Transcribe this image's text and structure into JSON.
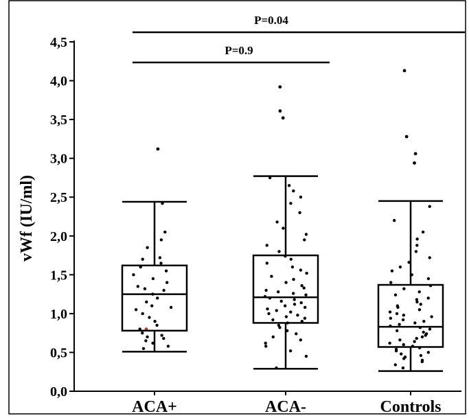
{
  "chart_data": {
    "type": "box",
    "title": "",
    "xlabel": "",
    "ylabel": "vWf (IU/ml)",
    "ylim": [
      0,
      4.5
    ],
    "y_ticks": [
      "0,0",
      "0,5",
      "1,0",
      "1,5",
      "2,0",
      "2,5",
      "3,0",
      "3,5",
      "4,0",
      "4,5"
    ],
    "y_tick_values": [
      0,
      0.5,
      1.0,
      1.5,
      2.0,
      2.5,
      3.0,
      3.5,
      4.0,
      4.5
    ],
    "categories": [
      "ACA+",
      "ACA-",
      "Controls"
    ],
    "grid": false,
    "legend": "none",
    "boxes": [
      {
        "category": "ACA+",
        "whisker_low": 0.51,
        "q1": 0.78,
        "median": 1.25,
        "q3": 1.62,
        "whisker_high": 2.44,
        "outliers": [
          3.12
        ],
        "points": [
          0.55,
          0.58,
          0.62,
          0.65,
          0.68,
          0.7,
          0.72,
          0.75,
          0.8,
          0.85,
          0.9,
          0.95,
          1.0,
          1.05,
          1.08,
          1.1,
          1.15,
          1.2,
          1.25,
          1.3,
          1.32,
          1.35,
          1.4,
          1.45,
          1.5,
          1.55,
          1.6,
          1.65,
          1.7,
          1.72,
          1.85,
          1.95,
          2.05,
          2.42
        ]
      },
      {
        "category": "ACA-",
        "whisker_low": 0.29,
        "q1": 0.88,
        "median": 1.21,
        "q3": 1.75,
        "whisker_high": 2.77,
        "outliers": [
          3.52,
          3.61,
          3.92
        ],
        "points": [
          0.3,
          0.45,
          0.52,
          0.58,
          0.62,
          0.66,
          0.7,
          0.74,
          0.78,
          0.82,
          0.85,
          0.88,
          0.9,
          0.92,
          0.94,
          0.96,
          0.98,
          1.0,
          1.02,
          1.04,
          1.06,
          1.08,
          1.1,
          1.12,
          1.14,
          1.16,
          1.18,
          1.2,
          1.22,
          1.24,
          1.26,
          1.28,
          1.3,
          1.33,
          1.36,
          1.4,
          1.44,
          1.48,
          1.52,
          1.56,
          1.6,
          1.65,
          1.7,
          1.74,
          1.8,
          1.88,
          1.95,
          2.02,
          2.1,
          2.18,
          2.3,
          2.42,
          2.5,
          2.58,
          2.65,
          2.75
        ]
      },
      {
        "category": "Controls",
        "whisker_low": 0.26,
        "q1": 0.57,
        "median": 0.83,
        "q3": 1.37,
        "whisker_high": 2.45,
        "outliers": [
          2.94,
          3.06,
          3.28,
          4.13
        ],
        "points": [
          0.3,
          0.34,
          0.38,
          0.4,
          0.42,
          0.44,
          0.46,
          0.48,
          0.5,
          0.52,
          0.54,
          0.56,
          0.58,
          0.6,
          0.62,
          0.64,
          0.66,
          0.68,
          0.7,
          0.72,
          0.74,
          0.76,
          0.78,
          0.8,
          0.82,
          0.84,
          0.86,
          0.88,
          0.9,
          0.92,
          0.94,
          0.96,
          0.98,
          1.0,
          1.02,
          1.05,
          1.08,
          1.1,
          1.12,
          1.15,
          1.18,
          1.2,
          1.24,
          1.28,
          1.32,
          1.36,
          1.4,
          1.45,
          1.5,
          1.55,
          1.6,
          1.66,
          1.72,
          1.8,
          1.88,
          1.96,
          2.05,
          2.2,
          2.38
        ]
      }
    ],
    "annotations": [
      {
        "text": "P=0.04",
        "from": "ACA+",
        "to": "Controls",
        "level": "upper"
      },
      {
        "text": "P=0.9",
        "from": "ACA+",
        "to": "ACA-",
        "level": "lower"
      }
    ],
    "colors": {
      "axis": "#000000",
      "box": "#000000",
      "point": "#000000",
      "highlight_point": "#c0392b"
    }
  }
}
